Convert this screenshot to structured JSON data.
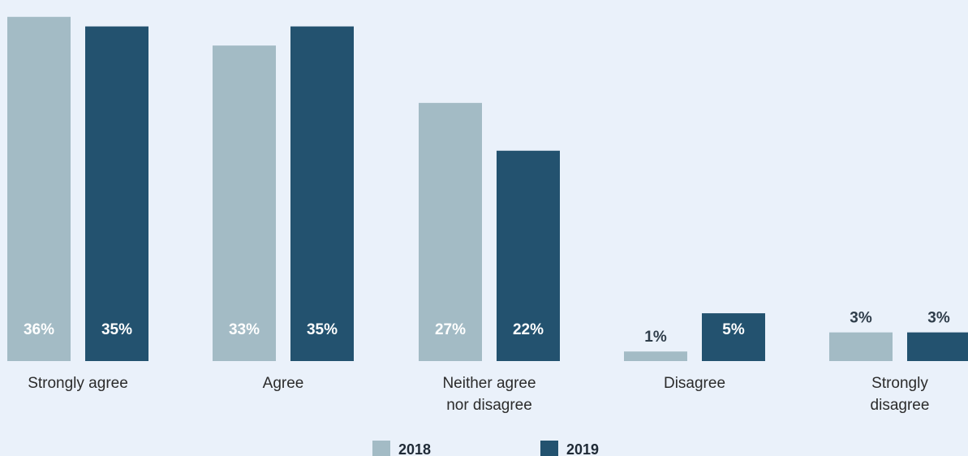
{
  "chart_data": {
    "type": "bar",
    "categories": [
      "Strongly agree",
      "Agree",
      "Neither agree nor disagree",
      "Disagree",
      "Strongly disagree"
    ],
    "category_lines": [
      [
        "Strongly agree"
      ],
      [
        "Agree"
      ],
      [
        "Neither agree",
        "nor disagree"
      ],
      [
        "Disagree"
      ],
      [
        "Strongly",
        "disagree"
      ]
    ],
    "series": [
      {
        "name": "2018",
        "color": "#a3bbc5",
        "values": [
          36,
          33,
          27,
          1,
          3
        ],
        "labels": [
          "36%",
          "33%",
          "27%",
          "1%",
          "3%"
        ]
      },
      {
        "name": "2019",
        "color": "#23526f",
        "values": [
          35,
          35,
          22,
          5,
          3
        ],
        "labels": [
          "35%",
          "35%",
          "22%",
          "5%",
          "3%"
        ]
      }
    ],
    "unit": "%",
    "ylim": [
      0,
      37
    ],
    "grid": false,
    "legend_position": "bottom-center",
    "label_colors": {
      "inside": "#ffffff",
      "outside": "#2f3d4a"
    }
  }
}
